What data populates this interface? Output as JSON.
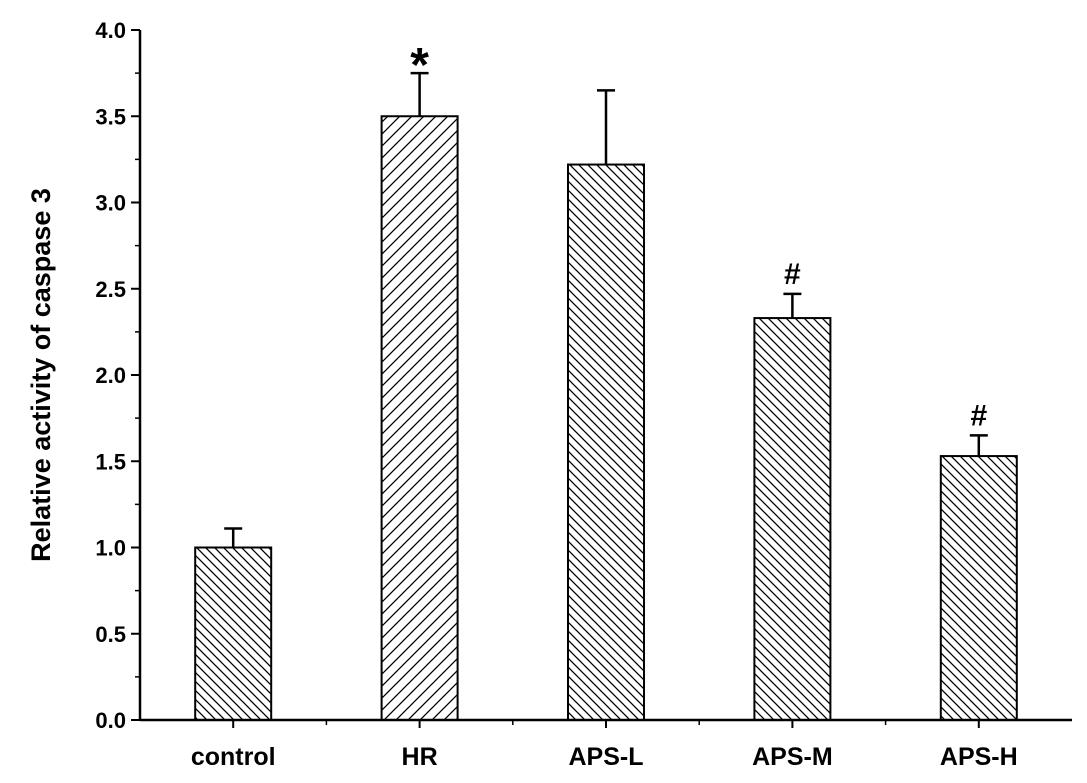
{
  "chart_data": {
    "type": "bar",
    "title": "",
    "xlabel": "",
    "ylabel": "Relative activity of caspase 3",
    "ylim": [
      0,
      4.0
    ],
    "yticks": [
      "0.0",
      "0.5",
      "1.0",
      "1.5",
      "2.0",
      "2.5",
      "3.0",
      "3.5",
      "4.0"
    ],
    "categories": [
      "control",
      "HR",
      "APS-L",
      "APS-M",
      "APS-H"
    ],
    "values": [
      1.0,
      3.5,
      3.22,
      2.33,
      1.53
    ],
    "errors": [
      0.11,
      0.25,
      0.43,
      0.14,
      0.12
    ],
    "annotations": [
      "",
      "*",
      "",
      "#",
      "#"
    ],
    "hatch": [
      "\\",
      "/",
      "\\",
      "\\",
      "\\"
    ],
    "grid": false,
    "bar_fill": "#ffffff",
    "line_color": "#000000"
  }
}
